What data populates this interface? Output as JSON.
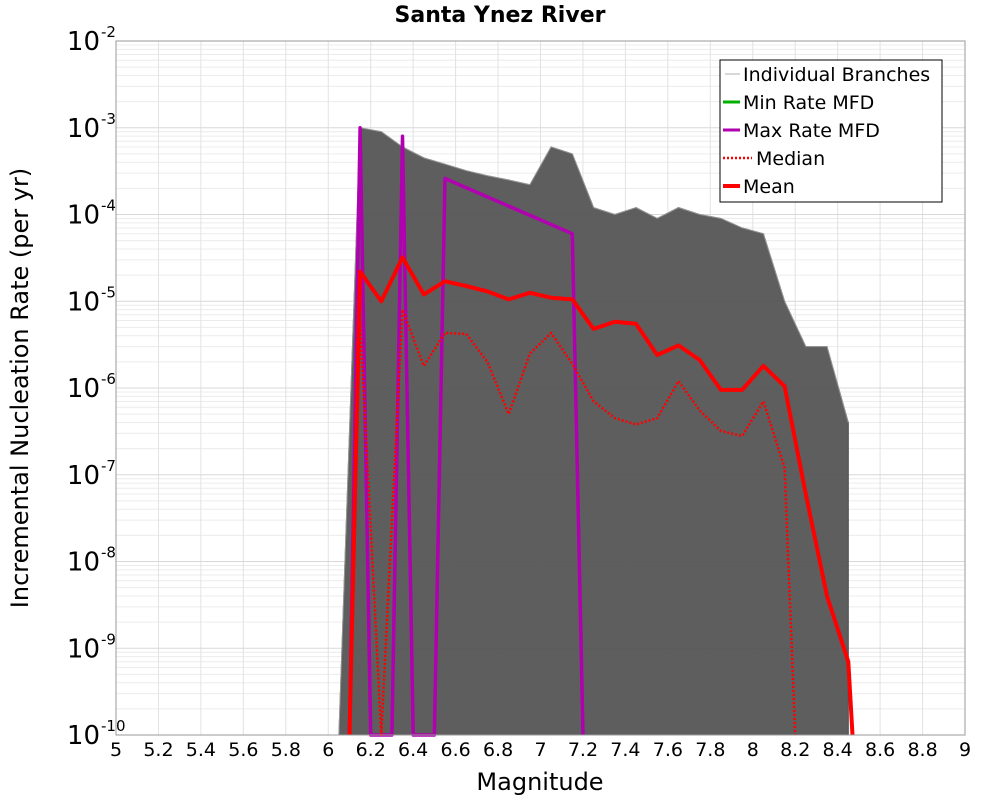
{
  "chart_data": {
    "type": "line",
    "title": "Santa Ynez River",
    "xlabel": "Magnitude",
    "ylabel": "Incremental Nucleation Rate (per yr)",
    "xlim": [
      5,
      9
    ],
    "ylim": [
      1e-10,
      0.01
    ],
    "y_scale": "log",
    "grid": true,
    "legend_position": "top-right",
    "x_ticks": [
      "5",
      "5.2",
      "5.4",
      "5.6",
      "5.8",
      "6",
      "6.2",
      "6.4",
      "6.6",
      "6.8",
      "7",
      "7.2",
      "7.4",
      "7.6",
      "7.8",
      "8",
      "8.2",
      "8.4",
      "8.6",
      "8.8",
      "9"
    ],
    "y_ticks": [
      {
        "base": "10",
        "exp": "-10"
      },
      {
        "base": "10",
        "exp": "-9"
      },
      {
        "base": "10",
        "exp": "-8"
      },
      {
        "base": "10",
        "exp": "-7"
      },
      {
        "base": "10",
        "exp": "-6"
      },
      {
        "base": "10",
        "exp": "-5"
      },
      {
        "base": "10",
        "exp": "-4"
      },
      {
        "base": "10",
        "exp": "-3"
      },
      {
        "base": "10",
        "exp": "-2"
      }
    ],
    "series": [
      {
        "name": "Individual Branches",
        "color": "#555555",
        "style": "thin",
        "note_values": "many overlapping branch curves; band shown as envelope",
        "x": [
          6.05,
          6.15,
          6.25,
          6.35,
          6.45,
          6.55,
          6.65,
          6.75,
          6.85,
          6.95,
          7.05,
          7.15,
          7.25,
          7.35,
          7.45,
          7.55,
          7.65,
          7.75,
          7.85,
          7.95,
          8.05,
          8.15,
          8.25,
          8.35,
          8.45
        ],
        "upper": [
          1e-10,
          0.001,
          0.0009,
          0.0006,
          0.00045,
          0.00038,
          0.00032,
          0.00028,
          0.00025,
          0.00022,
          0.0006,
          0.0005,
          0.00012,
          0.0001,
          0.00012,
          9e-05,
          0.00012,
          0.0001,
          9e-05,
          7e-05,
          6e-05,
          1e-05,
          3e-06,
          3e-06,
          4e-07
        ]
      },
      {
        "name": "Min Rate MFD",
        "color": "#00b000",
        "style": "solid",
        "x": [],
        "y": []
      },
      {
        "name": "Max Rate MFD",
        "color": "#b000b0",
        "style": "solid",
        "x": [
          6.1,
          6.15,
          6.2,
          6.3,
          6.35,
          6.4,
          6.5,
          6.55,
          7.15,
          7.2
        ],
        "y": [
          1e-10,
          0.001,
          1e-10,
          1e-10,
          0.0008,
          1e-10,
          1e-10,
          0.00026,
          6e-05,
          1e-10
        ]
      },
      {
        "name": "Median",
        "color": "#ff0000",
        "style": "dotted",
        "x": [
          6.1,
          6.15,
          6.25,
          6.35,
          6.45,
          6.55,
          6.65,
          6.75,
          6.85,
          6.95,
          7.05,
          7.15,
          7.25,
          7.35,
          7.45,
          7.55,
          7.65,
          7.75,
          7.85,
          7.95,
          8.05,
          8.15,
          8.2
        ],
        "y": [
          1e-10,
          6e-06,
          1e-10,
          8e-06,
          1.8e-06,
          4.3e-06,
          4.2e-06,
          2e-06,
          5e-07,
          2.5e-06,
          4.3e-06,
          1.9e-06,
          7e-07,
          4.5e-07,
          3.8e-07,
          4.5e-07,
          1.2e-06,
          5.5e-07,
          3.2e-07,
          2.8e-07,
          7e-07,
          1.2e-07,
          1e-10
        ]
      },
      {
        "name": "Mean",
        "color": "#ff0000",
        "style": "thick",
        "x": [
          6.1,
          6.15,
          6.25,
          6.35,
          6.45,
          6.55,
          6.65,
          6.75,
          6.85,
          6.95,
          7.05,
          7.15,
          7.25,
          7.35,
          7.45,
          7.55,
          7.65,
          7.75,
          7.85,
          7.95,
          8.05,
          8.15,
          8.25,
          8.35,
          8.45,
          8.47
        ],
        "y": [
          1e-10,
          2.2e-05,
          1e-05,
          3.2e-05,
          1.2e-05,
          1.7e-05,
          1.5e-05,
          1.3e-05,
          1.05e-05,
          1.25e-05,
          1.1e-05,
          1.05e-05,
          4.8e-06,
          5.8e-06,
          5.5e-06,
          2.4e-06,
          3.1e-06,
          2.1e-06,
          9.5e-07,
          9.5e-07,
          1.8e-06,
          1.05e-06,
          6e-08,
          4e-09,
          7e-10,
          1e-10
        ]
      }
    ]
  }
}
